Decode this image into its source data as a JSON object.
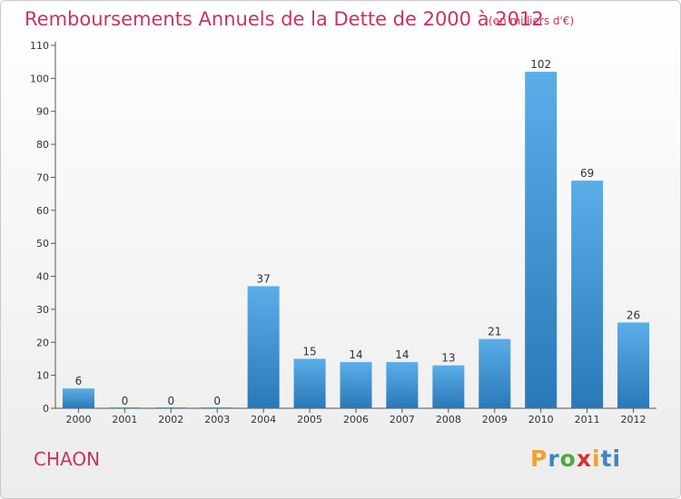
{
  "chart_data": {
    "type": "bar",
    "title": "Remboursements Annuels de la Dette de 2000 à 2012",
    "subtitle": "(en milliers d'€)",
    "categories": [
      "2000",
      "2001",
      "2002",
      "2003",
      "2004",
      "2005",
      "2006",
      "2007",
      "2008",
      "2009",
      "2010",
      "2011",
      "2012"
    ],
    "values": [
      6,
      0,
      0,
      0,
      37,
      15,
      14,
      14,
      13,
      21,
      102,
      69,
      26
    ],
    "ylim": [
      0,
      110
    ],
    "yticks": [
      0,
      10,
      20,
      30,
      40,
      50,
      60,
      70,
      80,
      90,
      100,
      110
    ],
    "grid": false,
    "bar_color_top": "#5aaee8",
    "bar_color_bottom": "#2a78b8"
  },
  "footer": {
    "commune": "CHAON",
    "logo_letters": [
      "P",
      "r",
      "o",
      "x",
      "i",
      "ti"
    ]
  }
}
